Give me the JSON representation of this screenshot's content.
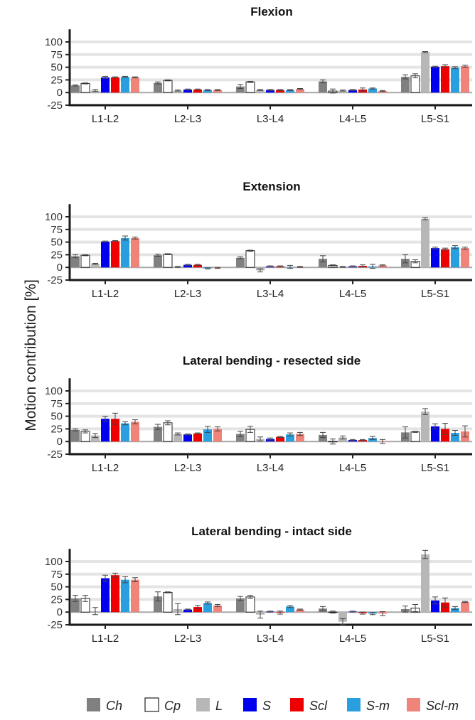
{
  "ylabel": "Motion contribution [%]",
  "series_names": [
    "Ch",
    "Cp",
    "L",
    "S",
    "Scl",
    "S-m",
    "Scl-m"
  ],
  "series_colors": [
    "#808080",
    "#ffffff",
    "#b7b7b7",
    "#0000ee",
    "#ee0000",
    "#2a9fdf",
    "#f0837a"
  ],
  "chart_data": [
    {
      "type": "bar",
      "title": "Flexion",
      "ylabel": "Motion contribution [%]",
      "ylim": [
        -25,
        125
      ],
      "yticks": [
        -25,
        0,
        25,
        50,
        75,
        100
      ],
      "grid": true,
      "legend": "bottom",
      "categories": [
        "L1-L2",
        "L2-L3",
        "L3-L4",
        "L4-L5",
        "L5-S1"
      ],
      "series": [
        {
          "name": "Ch",
          "values": [
            14,
            19,
            12,
            22,
            31
          ],
          "errors": [
            1,
            2,
            4,
            3,
            4
          ]
        },
        {
          "name": "Cp",
          "values": [
            18,
            24,
            21,
            3,
            33
          ],
          "errors": [
            1,
            1,
            1,
            4,
            4
          ]
        },
        {
          "name": "L",
          "values": [
            4,
            4,
            5,
            4,
            80
          ],
          "errors": [
            2,
            1,
            1,
            1,
            1
          ]
        },
        {
          "name": "S",
          "values": [
            30,
            6,
            5,
            5,
            51
          ],
          "errors": [
            2,
            1,
            1,
            1,
            1
          ]
        },
        {
          "name": "Scl",
          "values": [
            30,
            6,
            5,
            6,
            52
          ],
          "errors": [
            1,
            1,
            1,
            3,
            3
          ]
        },
        {
          "name": "S-m",
          "values": [
            31,
            5,
            5,
            8,
            49
          ],
          "errors": [
            1,
            1,
            1,
            1,
            2
          ]
        },
        {
          "name": "Scl-m",
          "values": [
            30,
            5,
            7,
            3,
            52
          ],
          "errors": [
            1,
            1,
            1,
            1,
            2
          ]
        }
      ]
    },
    {
      "type": "bar",
      "title": "Extension",
      "ylabel": "Motion contribution [%]",
      "ylim": [
        -25,
        125
      ],
      "yticks": [
        -25,
        0,
        25,
        50,
        75,
        100
      ],
      "grid": true,
      "legend": "bottom",
      "categories": [
        "L1-L2",
        "L2-L3",
        "L3-L4",
        "L4-L5",
        "L5-S1"
      ],
      "series": [
        {
          "name": "Ch",
          "values": [
            22,
            24,
            19,
            17,
            17
          ],
          "errors": [
            3,
            2,
            2,
            6,
            8
          ]
        },
        {
          "name": "Cp",
          "values": [
            24,
            26,
            33,
            4,
            12
          ],
          "errors": [
            1,
            1,
            1,
            1,
            3
          ]
        },
        {
          "name": "L",
          "values": [
            7,
            1,
            -6,
            1,
            96
          ],
          "errors": [
            1,
            1,
            3,
            1,
            2
          ]
        },
        {
          "name": "S",
          "values": [
            51,
            5,
            2,
            2,
            38
          ],
          "errors": [
            1,
            1,
            1,
            1,
            2
          ]
        },
        {
          "name": "Scl",
          "values": [
            52,
            5,
            2,
            3,
            36
          ],
          "errors": [
            1,
            1,
            1,
            2,
            2
          ]
        },
        {
          "name": "S-m",
          "values": [
            58,
            -2,
            1,
            2,
            40
          ],
          "errors": [
            4,
            1,
            3,
            4,
            3
          ]
        },
        {
          "name": "Scl-m",
          "values": [
            58,
            -1,
            1,
            4,
            38
          ],
          "errors": [
            2,
            1,
            1,
            1,
            2
          ]
        }
      ]
    },
    {
      "type": "bar",
      "title": "Lateral bending - resected side",
      "ylabel": "Motion contribution [%]",
      "ylim": [
        -25,
        125
      ],
      "yticks": [
        -25,
        0,
        25,
        50,
        75,
        100
      ],
      "grid": true,
      "legend": "bottom",
      "categories": [
        "L1-L2",
        "L2-L3",
        "L3-L4",
        "L4-L5",
        "L5-S1"
      ],
      "series": [
        {
          "name": "Ch",
          "values": [
            23,
            29,
            15,
            13,
            18
          ],
          "errors": [
            2,
            5,
            5,
            5,
            11
          ]
        },
        {
          "name": "Cp",
          "values": [
            20,
            37,
            24,
            0,
            19
          ],
          "errors": [
            3,
            4,
            6,
            5,
            1
          ]
        },
        {
          "name": "L",
          "values": [
            12,
            15,
            5,
            8,
            59
          ],
          "errors": [
            4,
            2,
            4,
            3,
            6
          ]
        },
        {
          "name": "S",
          "values": [
            45,
            14,
            5,
            3,
            30
          ],
          "errors": [
            5,
            1,
            2,
            1,
            5
          ]
        },
        {
          "name": "Scl",
          "values": [
            45,
            16,
            9,
            3,
            25
          ],
          "errors": [
            11,
            1,
            1,
            1,
            11
          ]
        },
        {
          "name": "S-m",
          "values": [
            36,
            24,
            14,
            7,
            17
          ],
          "errors": [
            3,
            6,
            3,
            3,
            5
          ]
        },
        {
          "name": "Scl-m",
          "values": [
            39,
            25,
            15,
            0,
            20
          ],
          "errors": [
            4,
            4,
            3,
            4,
            11
          ]
        }
      ]
    },
    {
      "type": "bar",
      "title": "Lateral bending - intact side",
      "ylabel": "Motion contribution [%]",
      "ylim": [
        -25,
        125
      ],
      "yticks": [
        -25,
        0,
        25,
        50,
        75,
        100
      ],
      "grid": true,
      "legend": "bottom",
      "categories": [
        "L1-L2",
        "L2-L3",
        "L3-L4",
        "L4-L5",
        "L5-S1"
      ],
      "series": [
        {
          "name": "Ch",
          "values": [
            27,
            31,
            27,
            7,
            6
          ],
          "errors": [
            6,
            9,
            4,
            4,
            6
          ]
        },
        {
          "name": "Cp",
          "values": [
            27,
            39,
            30,
            0,
            8
          ],
          "errors": [
            6,
            1,
            3,
            2,
            7
          ]
        },
        {
          "name": "L",
          "values": [
            2,
            6,
            -5,
            -19,
            114
          ],
          "errors": [
            7,
            11,
            7,
            6,
            8
          ]
        },
        {
          "name": "S",
          "values": [
            67,
            5,
            1,
            1,
            23
          ],
          "errors": [
            6,
            1,
            1,
            1,
            7
          ]
        },
        {
          "name": "Scl",
          "values": [
            73,
            10,
            -1,
            -2,
            19
          ],
          "errors": [
            4,
            3,
            3,
            2,
            9
          ]
        },
        {
          "name": "S-m",
          "values": [
            64,
            18,
            11,
            -3,
            8
          ],
          "errors": [
            6,
            2,
            2,
            2,
            3
          ]
        },
        {
          "name": "Scl-m",
          "values": [
            64,
            13,
            5,
            -3,
            20
          ],
          "errors": [
            4,
            2,
            1,
            4,
            1
          ]
        }
      ]
    }
  ]
}
